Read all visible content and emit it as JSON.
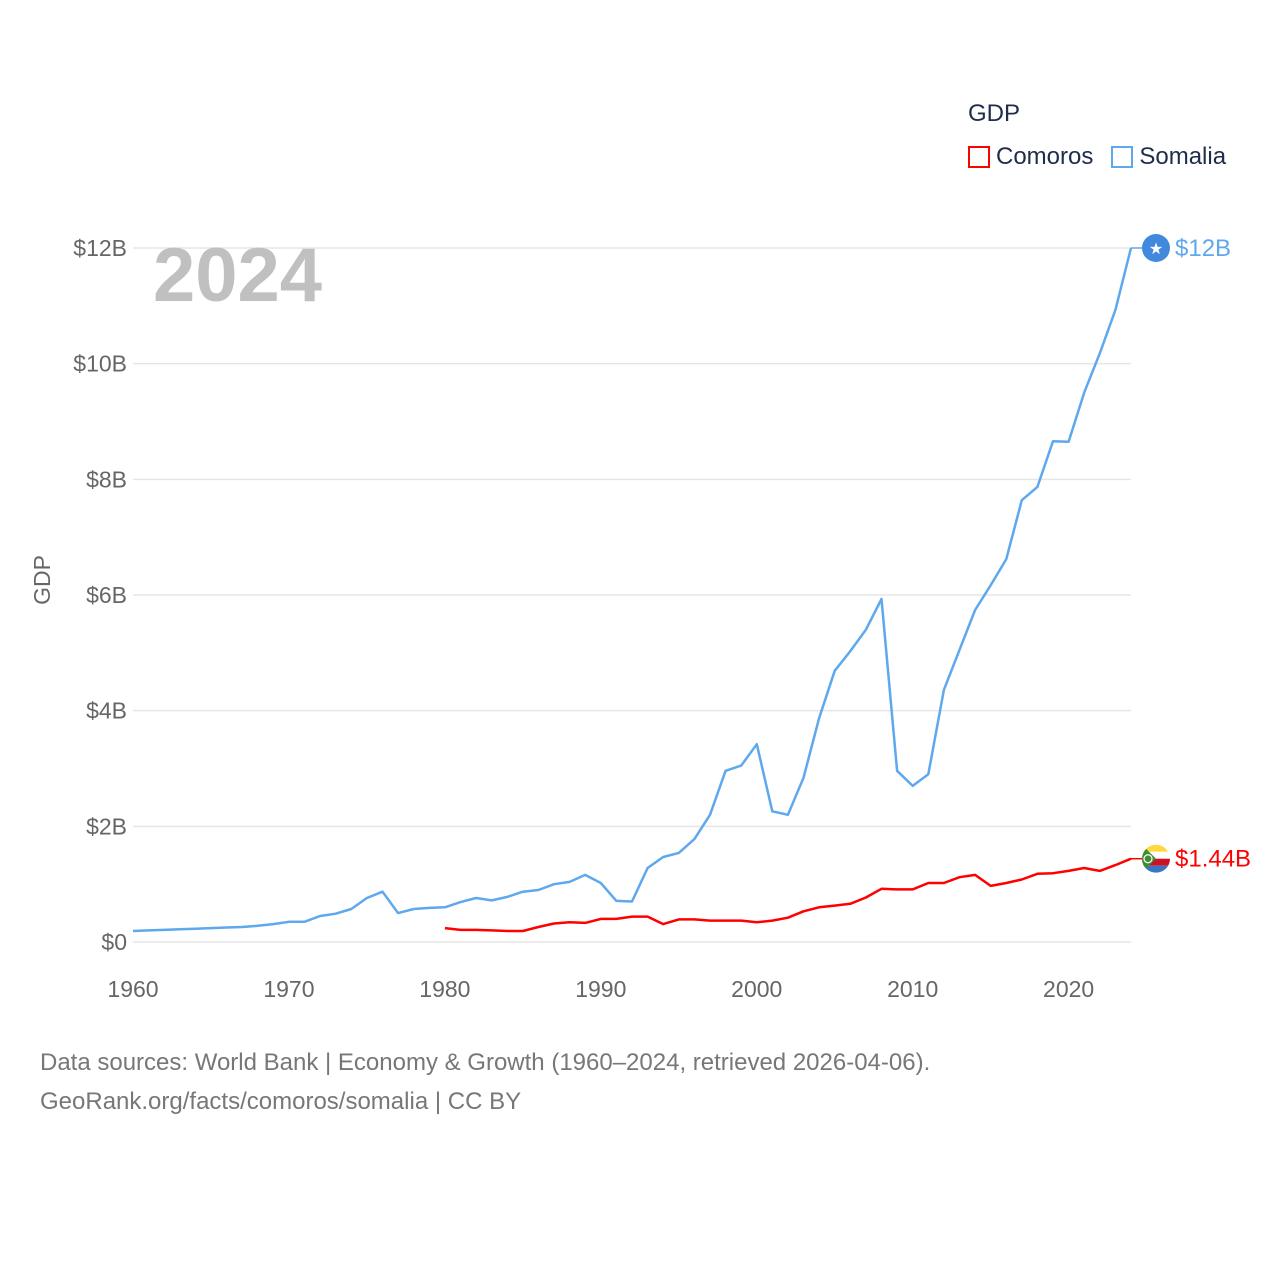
{
  "chart_data": {
    "type": "line",
    "title": "",
    "year_label": "2024",
    "xlabel": "",
    "ylabel": "GDP",
    "xlim": [
      1960,
      2024
    ],
    "ylim": [
      0,
      12
    ],
    "x_ticks": [
      "1960",
      "1970",
      "1980",
      "1990",
      "2000",
      "2010",
      "2020"
    ],
    "x_tick_values": [
      1960,
      1970,
      1980,
      1990,
      2000,
      2010,
      2020
    ],
    "y_ticks": [
      "$0",
      "$2B",
      "$4B",
      "$6B",
      "$8B",
      "$10B",
      "$12B"
    ],
    "y_tick_values": [
      0,
      2,
      4,
      6,
      8,
      10,
      12
    ],
    "grid": true,
    "legend": {
      "title": "GDP",
      "placement": "top-right",
      "items": [
        "Comoros",
        "Somalia"
      ]
    },
    "series": [
      {
        "name": "Comoros",
        "color": "#ff0000",
        "end_label": "$1.44B",
        "flag": "comoros-flag",
        "x": [
          1980,
          1981,
          1982,
          1983,
          1984,
          1985,
          1986,
          1987,
          1988,
          1989,
          1990,
          1991,
          1992,
          1993,
          1994,
          1995,
          1996,
          1997,
          1998,
          1999,
          2000,
          2001,
          2002,
          2003,
          2004,
          2005,
          2006,
          2007,
          2008,
          2009,
          2010,
          2011,
          2012,
          2013,
          2014,
          2015,
          2016,
          2017,
          2018,
          2019,
          2020,
          2021,
          2022,
          2023,
          2024
        ],
        "values": [
          0.24,
          0.21,
          0.21,
          0.2,
          0.19,
          0.19,
          0.26,
          0.32,
          0.34,
          0.33,
          0.4,
          0.4,
          0.44,
          0.44,
          0.31,
          0.39,
          0.39,
          0.37,
          0.37,
          0.37,
          0.34,
          0.37,
          0.42,
          0.53,
          0.6,
          0.63,
          0.66,
          0.77,
          0.92,
          0.91,
          0.91,
          1.02,
          1.02,
          1.12,
          1.16,
          0.97,
          1.02,
          1.08,
          1.18,
          1.19,
          1.23,
          1.28,
          1.23,
          1.33,
          1.44
        ]
      },
      {
        "name": "Somalia",
        "color": "#5ea8ed",
        "end_label": "$12B",
        "flag": "somalia-flag",
        "x": [
          1960,
          1961,
          1962,
          1963,
          1964,
          1965,
          1966,
          1967,
          1968,
          1969,
          1970,
          1971,
          1972,
          1973,
          1974,
          1975,
          1976,
          1977,
          1978,
          1979,
          1980,
          1981,
          1982,
          1983,
          1984,
          1985,
          1986,
          1987,
          1988,
          1989,
          1990,
          1991,
          1992,
          1993,
          1994,
          1995,
          1996,
          1997,
          1998,
          1999,
          2000,
          2001,
          2002,
          2003,
          2004,
          2005,
          2006,
          2007,
          2008,
          2009,
          2010,
          2011,
          2012,
          2013,
          2014,
          2015,
          2016,
          2017,
          2018,
          2019,
          2020,
          2021,
          2022,
          2023,
          2024
        ],
        "values": [
          0.19,
          0.2,
          0.21,
          0.22,
          0.23,
          0.24,
          0.25,
          0.26,
          0.28,
          0.31,
          0.35,
          0.35,
          0.45,
          0.49,
          0.57,
          0.76,
          0.87,
          0.5,
          0.57,
          0.59,
          0.6,
          0.69,
          0.76,
          0.72,
          0.78,
          0.87,
          0.9,
          1.0,
          1.04,
          1.16,
          1.02,
          0.71,
          0.7,
          1.28,
          1.47,
          1.54,
          1.78,
          2.2,
          2.96,
          3.05,
          3.42,
          2.26,
          2.2,
          2.84,
          3.87,
          4.69,
          5.03,
          5.4,
          5.93,
          2.96,
          2.7,
          2.9,
          4.36,
          5.05,
          5.74,
          6.17,
          6.62,
          7.64,
          7.87,
          8.66,
          8.65,
          9.5,
          10.18,
          10.93,
          12.0
        ]
      }
    ]
  },
  "footer": {
    "line1": "Data sources: World Bank | Economy & Growth (1960–2024, retrieved 2026-04-06).",
    "line2": "GeoRank.org/facts/comoros/somalia | CC BY"
  }
}
